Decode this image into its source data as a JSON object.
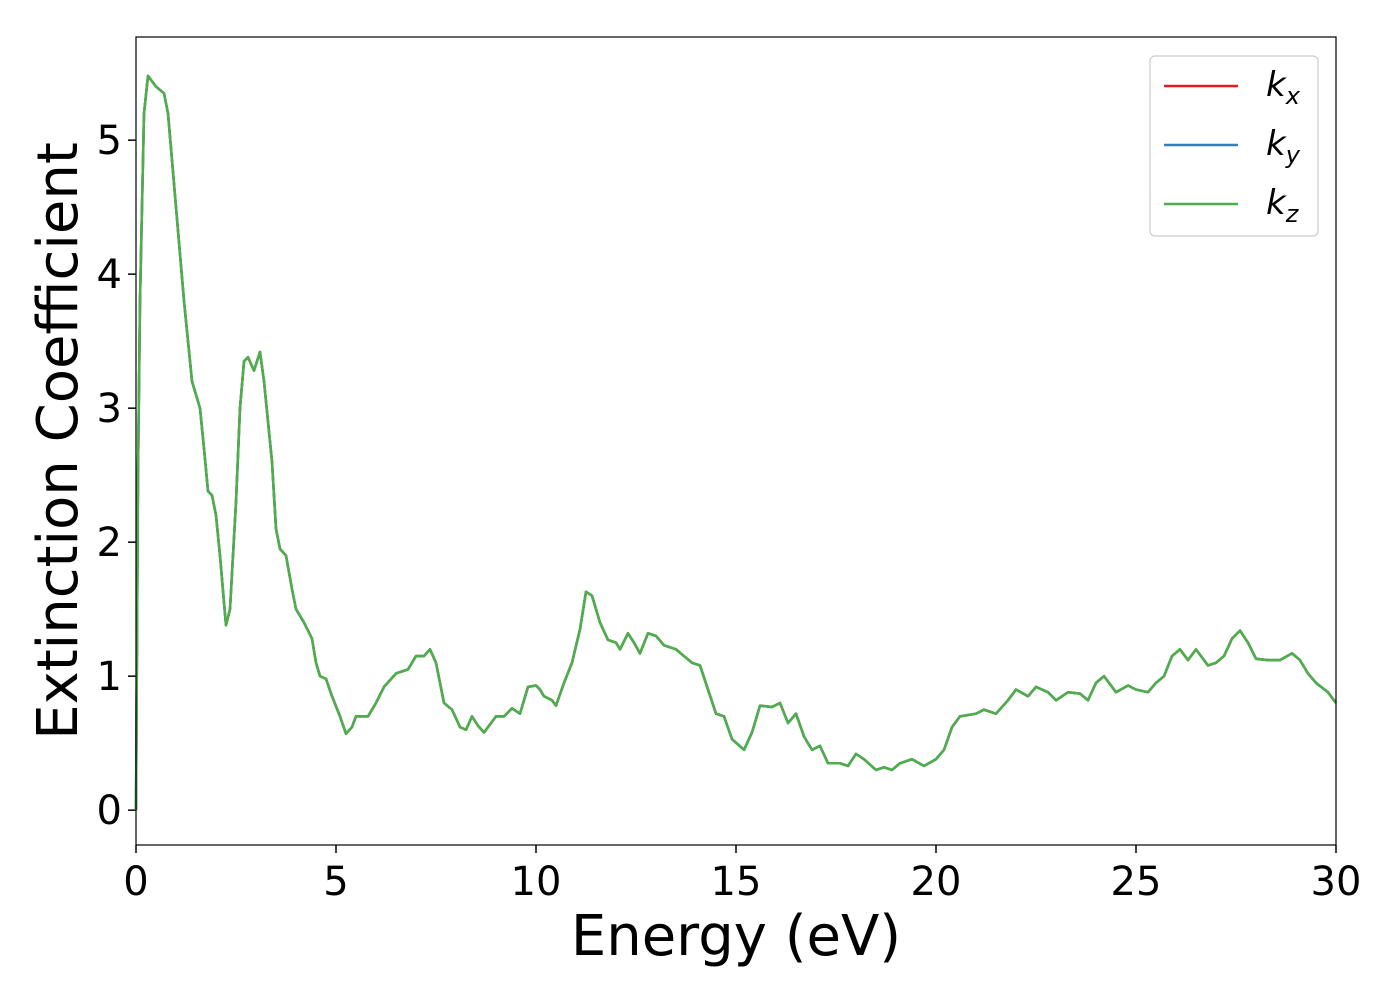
{
  "chart_data": {
    "type": "line",
    "xlabel": "Energy (eV)",
    "ylabel": "Extinction Coefficient",
    "xlim": [
      0,
      30
    ],
    "ylim": [
      -0.26,
      5.77
    ],
    "xticks": [
      0,
      5,
      10,
      15,
      20,
      25,
      30
    ],
    "yticks": [
      0,
      1,
      2,
      3,
      4,
      5
    ],
    "legend": "upper right",
    "x": [
      0,
      0.05,
      0.1,
      0.2,
      0.3,
      0.5,
      0.7,
      0.8,
      1.0,
      1.2,
      1.3,
      1.4,
      1.6,
      1.7,
      1.8,
      1.9,
      2.0,
      2.1,
      2.2,
      2.25,
      2.35,
      2.5,
      2.6,
      2.7,
      2.8,
      2.95,
      3.1,
      3.2,
      3.4,
      3.5,
      3.6,
      3.75,
      3.9,
      4.0,
      4.2,
      4.4,
      4.5,
      4.6,
      4.75,
      4.9,
      5.1,
      5.25,
      5.4,
      5.5,
      5.8,
      6.0,
      6.2,
      6.5,
      6.8,
      7.0,
      7.2,
      7.35,
      7.5,
      7.7,
      7.9,
      8.1,
      8.25,
      8.4,
      8.55,
      8.7,
      9.0,
      9.2,
      9.4,
      9.6,
      9.8,
      10.0,
      10.1,
      10.2,
      10.4,
      10.5,
      10.7,
      10.9,
      11.1,
      11.25,
      11.4,
      11.6,
      11.8,
      12.0,
      12.1,
      12.3,
      12.45,
      12.6,
      12.8,
      13.0,
      13.2,
      13.5,
      13.7,
      13.9,
      14.1,
      14.3,
      14.5,
      14.7,
      14.9,
      15.2,
      15.4,
      15.6,
      15.9,
      16.1,
      16.3,
      16.5,
      16.7,
      16.9,
      17.1,
      17.3,
      17.6,
      17.8,
      18.0,
      18.2,
      18.5,
      18.7,
      18.9,
      19.1,
      19.4,
      19.7,
      20.0,
      20.2,
      20.4,
      20.6,
      21.0,
      21.2,
      21.5,
      21.8,
      22.0,
      22.3,
      22.5,
      22.8,
      23.0,
      23.3,
      23.6,
      23.8,
      24.0,
      24.2,
      24.5,
      24.8,
      25.0,
      25.3,
      25.5,
      25.7,
      25.9,
      26.1,
      26.3,
      26.5,
      26.8,
      27.0,
      27.2,
      27.4,
      27.6,
      27.8,
      28.0,
      28.3,
      28.6,
      28.9,
      29.1,
      29.3,
      29.5,
      29.8,
      30.0
    ],
    "series": [
      {
        "name": "kx",
        "color": "#e41a1c",
        "values": [
          0,
          2.5,
          3.8,
          5.2,
          5.48,
          5.4,
          5.35,
          5.2,
          4.5,
          3.8,
          3.5,
          3.2,
          3.0,
          2.7,
          2.38,
          2.35,
          2.2,
          1.9,
          1.55,
          1.38,
          1.5,
          2.3,
          3.0,
          3.35,
          3.38,
          3.28,
          3.42,
          3.2,
          2.6,
          2.1,
          1.95,
          1.9,
          1.65,
          1.5,
          1.4,
          1.28,
          1.1,
          1.0,
          0.98,
          0.85,
          0.7,
          0.57,
          0.62,
          0.7,
          0.7,
          0.8,
          0.92,
          1.02,
          1.05,
          1.15,
          1.15,
          1.2,
          1.1,
          0.8,
          0.75,
          0.62,
          0.6,
          0.7,
          0.63,
          0.58,
          0.7,
          0.7,
          0.76,
          0.72,
          0.92,
          0.93,
          0.9,
          0.85,
          0.82,
          0.78,
          0.95,
          1.1,
          1.35,
          1.63,
          1.6,
          1.4,
          1.27,
          1.25,
          1.2,
          1.32,
          1.25,
          1.17,
          1.32,
          1.3,
          1.23,
          1.2,
          1.15,
          1.1,
          1.08,
          0.9,
          0.72,
          0.7,
          0.53,
          0.45,
          0.58,
          0.78,
          0.77,
          0.8,
          0.65,
          0.72,
          0.55,
          0.45,
          0.48,
          0.35,
          0.35,
          0.33,
          0.42,
          0.38,
          0.3,
          0.32,
          0.3,
          0.35,
          0.38,
          0.33,
          0.38,
          0.45,
          0.62,
          0.7,
          0.72,
          0.75,
          0.72,
          0.82,
          0.9,
          0.85,
          0.92,
          0.88,
          0.82,
          0.88,
          0.87,
          0.82,
          0.95,
          1.0,
          0.88,
          0.93,
          0.9,
          0.88,
          0.95,
          1.0,
          1.15,
          1.2,
          1.12,
          1.2,
          1.08,
          1.1,
          1.15,
          1.28,
          1.34,
          1.25,
          1.13,
          1.12,
          1.12,
          1.17,
          1.12,
          1.02,
          0.95,
          0.88,
          0.8
        ]
      },
      {
        "name": "ky",
        "color": "#377eb8",
        "values": [
          0,
          2.5,
          3.8,
          5.2,
          5.48,
          5.4,
          5.35,
          5.2,
          4.5,
          3.8,
          3.5,
          3.2,
          3.0,
          2.7,
          2.38,
          2.35,
          2.2,
          1.9,
          1.55,
          1.38,
          1.5,
          2.3,
          3.0,
          3.35,
          3.38,
          3.28,
          3.42,
          3.2,
          2.6,
          2.1,
          1.95,
          1.9,
          1.65,
          1.5,
          1.4,
          1.28,
          1.1,
          1.0,
          0.98,
          0.85,
          0.7,
          0.57,
          0.62,
          0.7,
          0.7,
          0.8,
          0.92,
          1.02,
          1.05,
          1.15,
          1.15,
          1.2,
          1.1,
          0.8,
          0.75,
          0.62,
          0.6,
          0.7,
          0.63,
          0.58,
          0.7,
          0.7,
          0.76,
          0.72,
          0.92,
          0.93,
          0.9,
          0.85,
          0.82,
          0.78,
          0.95,
          1.1,
          1.35,
          1.63,
          1.6,
          1.4,
          1.27,
          1.25,
          1.2,
          1.32,
          1.25,
          1.17,
          1.32,
          1.3,
          1.23,
          1.2,
          1.15,
          1.1,
          1.08,
          0.9,
          0.72,
          0.7,
          0.53,
          0.45,
          0.58,
          0.78,
          0.77,
          0.8,
          0.65,
          0.72,
          0.55,
          0.45,
          0.48,
          0.35,
          0.35,
          0.33,
          0.42,
          0.38,
          0.3,
          0.32,
          0.3,
          0.35,
          0.38,
          0.33,
          0.38,
          0.45,
          0.62,
          0.7,
          0.72,
          0.75,
          0.72,
          0.82,
          0.9,
          0.85,
          0.92,
          0.88,
          0.82,
          0.88,
          0.87,
          0.82,
          0.95,
          1.0,
          0.88,
          0.93,
          0.9,
          0.88,
          0.95,
          1.0,
          1.15,
          1.2,
          1.12,
          1.2,
          1.08,
          1.1,
          1.15,
          1.28,
          1.34,
          1.25,
          1.13,
          1.12,
          1.12,
          1.17,
          1.12,
          1.02,
          0.95,
          0.88,
          0.8
        ]
      },
      {
        "name": "kz",
        "color": "#4daf4a",
        "values": [
          0,
          2.5,
          3.8,
          5.2,
          5.48,
          5.4,
          5.35,
          5.2,
          4.5,
          3.8,
          3.5,
          3.2,
          3.0,
          2.7,
          2.38,
          2.35,
          2.2,
          1.9,
          1.55,
          1.38,
          1.5,
          2.3,
          3.0,
          3.35,
          3.38,
          3.28,
          3.42,
          3.2,
          2.6,
          2.1,
          1.95,
          1.9,
          1.65,
          1.5,
          1.4,
          1.28,
          1.1,
          1.0,
          0.98,
          0.85,
          0.7,
          0.57,
          0.62,
          0.7,
          0.7,
          0.8,
          0.92,
          1.02,
          1.05,
          1.15,
          1.15,
          1.2,
          1.1,
          0.8,
          0.75,
          0.62,
          0.6,
          0.7,
          0.63,
          0.58,
          0.7,
          0.7,
          0.76,
          0.72,
          0.92,
          0.93,
          0.9,
          0.85,
          0.82,
          0.78,
          0.95,
          1.1,
          1.35,
          1.63,
          1.6,
          1.4,
          1.27,
          1.25,
          1.2,
          1.32,
          1.25,
          1.17,
          1.32,
          1.3,
          1.23,
          1.2,
          1.15,
          1.1,
          1.08,
          0.9,
          0.72,
          0.7,
          0.53,
          0.45,
          0.58,
          0.78,
          0.77,
          0.8,
          0.65,
          0.72,
          0.55,
          0.45,
          0.48,
          0.35,
          0.35,
          0.33,
          0.42,
          0.38,
          0.3,
          0.32,
          0.3,
          0.35,
          0.38,
          0.33,
          0.38,
          0.45,
          0.62,
          0.7,
          0.72,
          0.75,
          0.72,
          0.82,
          0.9,
          0.85,
          0.92,
          0.88,
          0.82,
          0.88,
          0.87,
          0.82,
          0.95,
          1.0,
          0.88,
          0.93,
          0.9,
          0.88,
          0.95,
          1.0,
          1.15,
          1.2,
          1.12,
          1.2,
          1.08,
          1.1,
          1.15,
          1.28,
          1.34,
          1.25,
          1.13,
          1.12,
          1.12,
          1.17,
          1.12,
          1.02,
          0.95,
          0.88,
          0.8
        ]
      }
    ]
  }
}
